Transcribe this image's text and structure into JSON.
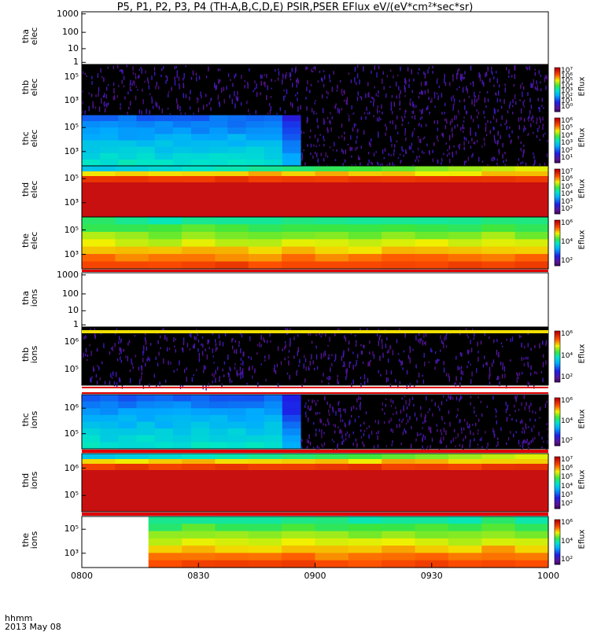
{
  "title": "P5, P1, P2, P3, P4 (TH-A,B,C,D,E) PSIR,PSER EFlux eV/(eV*cm²*sec*sr)",
  "time_axis": {
    "label_line1": "hhmm",
    "label_line2": "2013 May 08",
    "ticks": [
      "0800",
      "0830",
      "0900",
      "0930",
      "1000"
    ]
  },
  "colorbar_label": "Eflux",
  "chart_data": [
    {
      "type": "heatmap",
      "id": "tha-elec",
      "ylabel": [
        "tha",
        "elec"
      ],
      "yticks": [
        "1000",
        "100",
        "10",
        "1"
      ],
      "content": "empty",
      "colorbar": null
    },
    {
      "type": "heatmap",
      "id": "thb-elec",
      "ylabel": [
        "thb",
        "elec"
      ],
      "yticks": [
        "10⁵",
        "10³"
      ],
      "content": "noise",
      "colorbar": {
        "ticks": [
          "10⁷",
          "10⁶",
          "10⁵",
          "10⁴",
          "10³",
          "10²",
          "10¹",
          "10⁰"
        ]
      }
    },
    {
      "type": "heatmap",
      "id": "thc-elec",
      "ylabel": [
        "thc",
        "elec"
      ],
      "yticks": [
        "10⁵",
        "10³"
      ],
      "content": "thc",
      "colorbar": {
        "ticks": [
          "10⁶",
          "10⁵",
          "10⁴",
          "10³",
          "10²",
          "10¹"
        ]
      }
    },
    {
      "type": "heatmap",
      "id": "thd-elec",
      "ylabel": [
        "thd",
        "elec"
      ],
      "yticks": [
        "10⁵",
        "10³"
      ],
      "content": "thd",
      "colorbar": {
        "ticks": [
          "10⁷",
          "10⁶",
          "10⁵",
          "10⁴",
          "10³",
          "10²"
        ]
      }
    },
    {
      "type": "heatmap",
      "id": "the-elec",
      "ylabel": [
        "the",
        "elec"
      ],
      "yticks": [
        "10⁵",
        "10³"
      ],
      "content": "the",
      "colorbar": {
        "ticks": [
          "10⁶",
          "10⁴",
          "10²"
        ]
      }
    },
    {
      "type": "heatmap",
      "id": "tha-ions",
      "ylabel": [
        "tha",
        "ions"
      ],
      "yticks": [
        "1000",
        "100",
        "10",
        "1"
      ],
      "content": "empty",
      "colorbar": null
    },
    {
      "type": "heatmap",
      "id": "thb-ions",
      "ylabel": [
        "thb",
        "ions"
      ],
      "yticks": [
        "10⁶",
        "10⁵"
      ],
      "content": "noise",
      "colorbar": {
        "ticks": [
          "10⁶",
          "10⁴",
          "10²"
        ]
      }
    },
    {
      "type": "heatmap",
      "id": "thc-ions",
      "ylabel": [
        "thc",
        "ions"
      ],
      "yticks": [
        "10⁶",
        "10⁵"
      ],
      "content": "thc",
      "colorbar": {
        "ticks": [
          "10⁶",
          "10⁴",
          "10²"
        ]
      }
    },
    {
      "type": "heatmap",
      "id": "thd-ions",
      "ylabel": [
        "thd",
        "ions"
      ],
      "yticks": [
        "10⁶",
        "10⁵"
      ],
      "content": "thd",
      "colorbar": {
        "ticks": [
          "10⁷",
          "10⁶",
          "10⁵",
          "10⁴",
          "10³",
          "10²"
        ]
      }
    },
    {
      "type": "heatmap",
      "id": "the-ions",
      "ylabel": [
        "the",
        "ions"
      ],
      "yticks": [
        "10⁵",
        "10³"
      ],
      "content": "the",
      "colorbar": {
        "ticks": [
          "10⁶",
          "10⁴",
          "10²"
        ]
      }
    }
  ]
}
